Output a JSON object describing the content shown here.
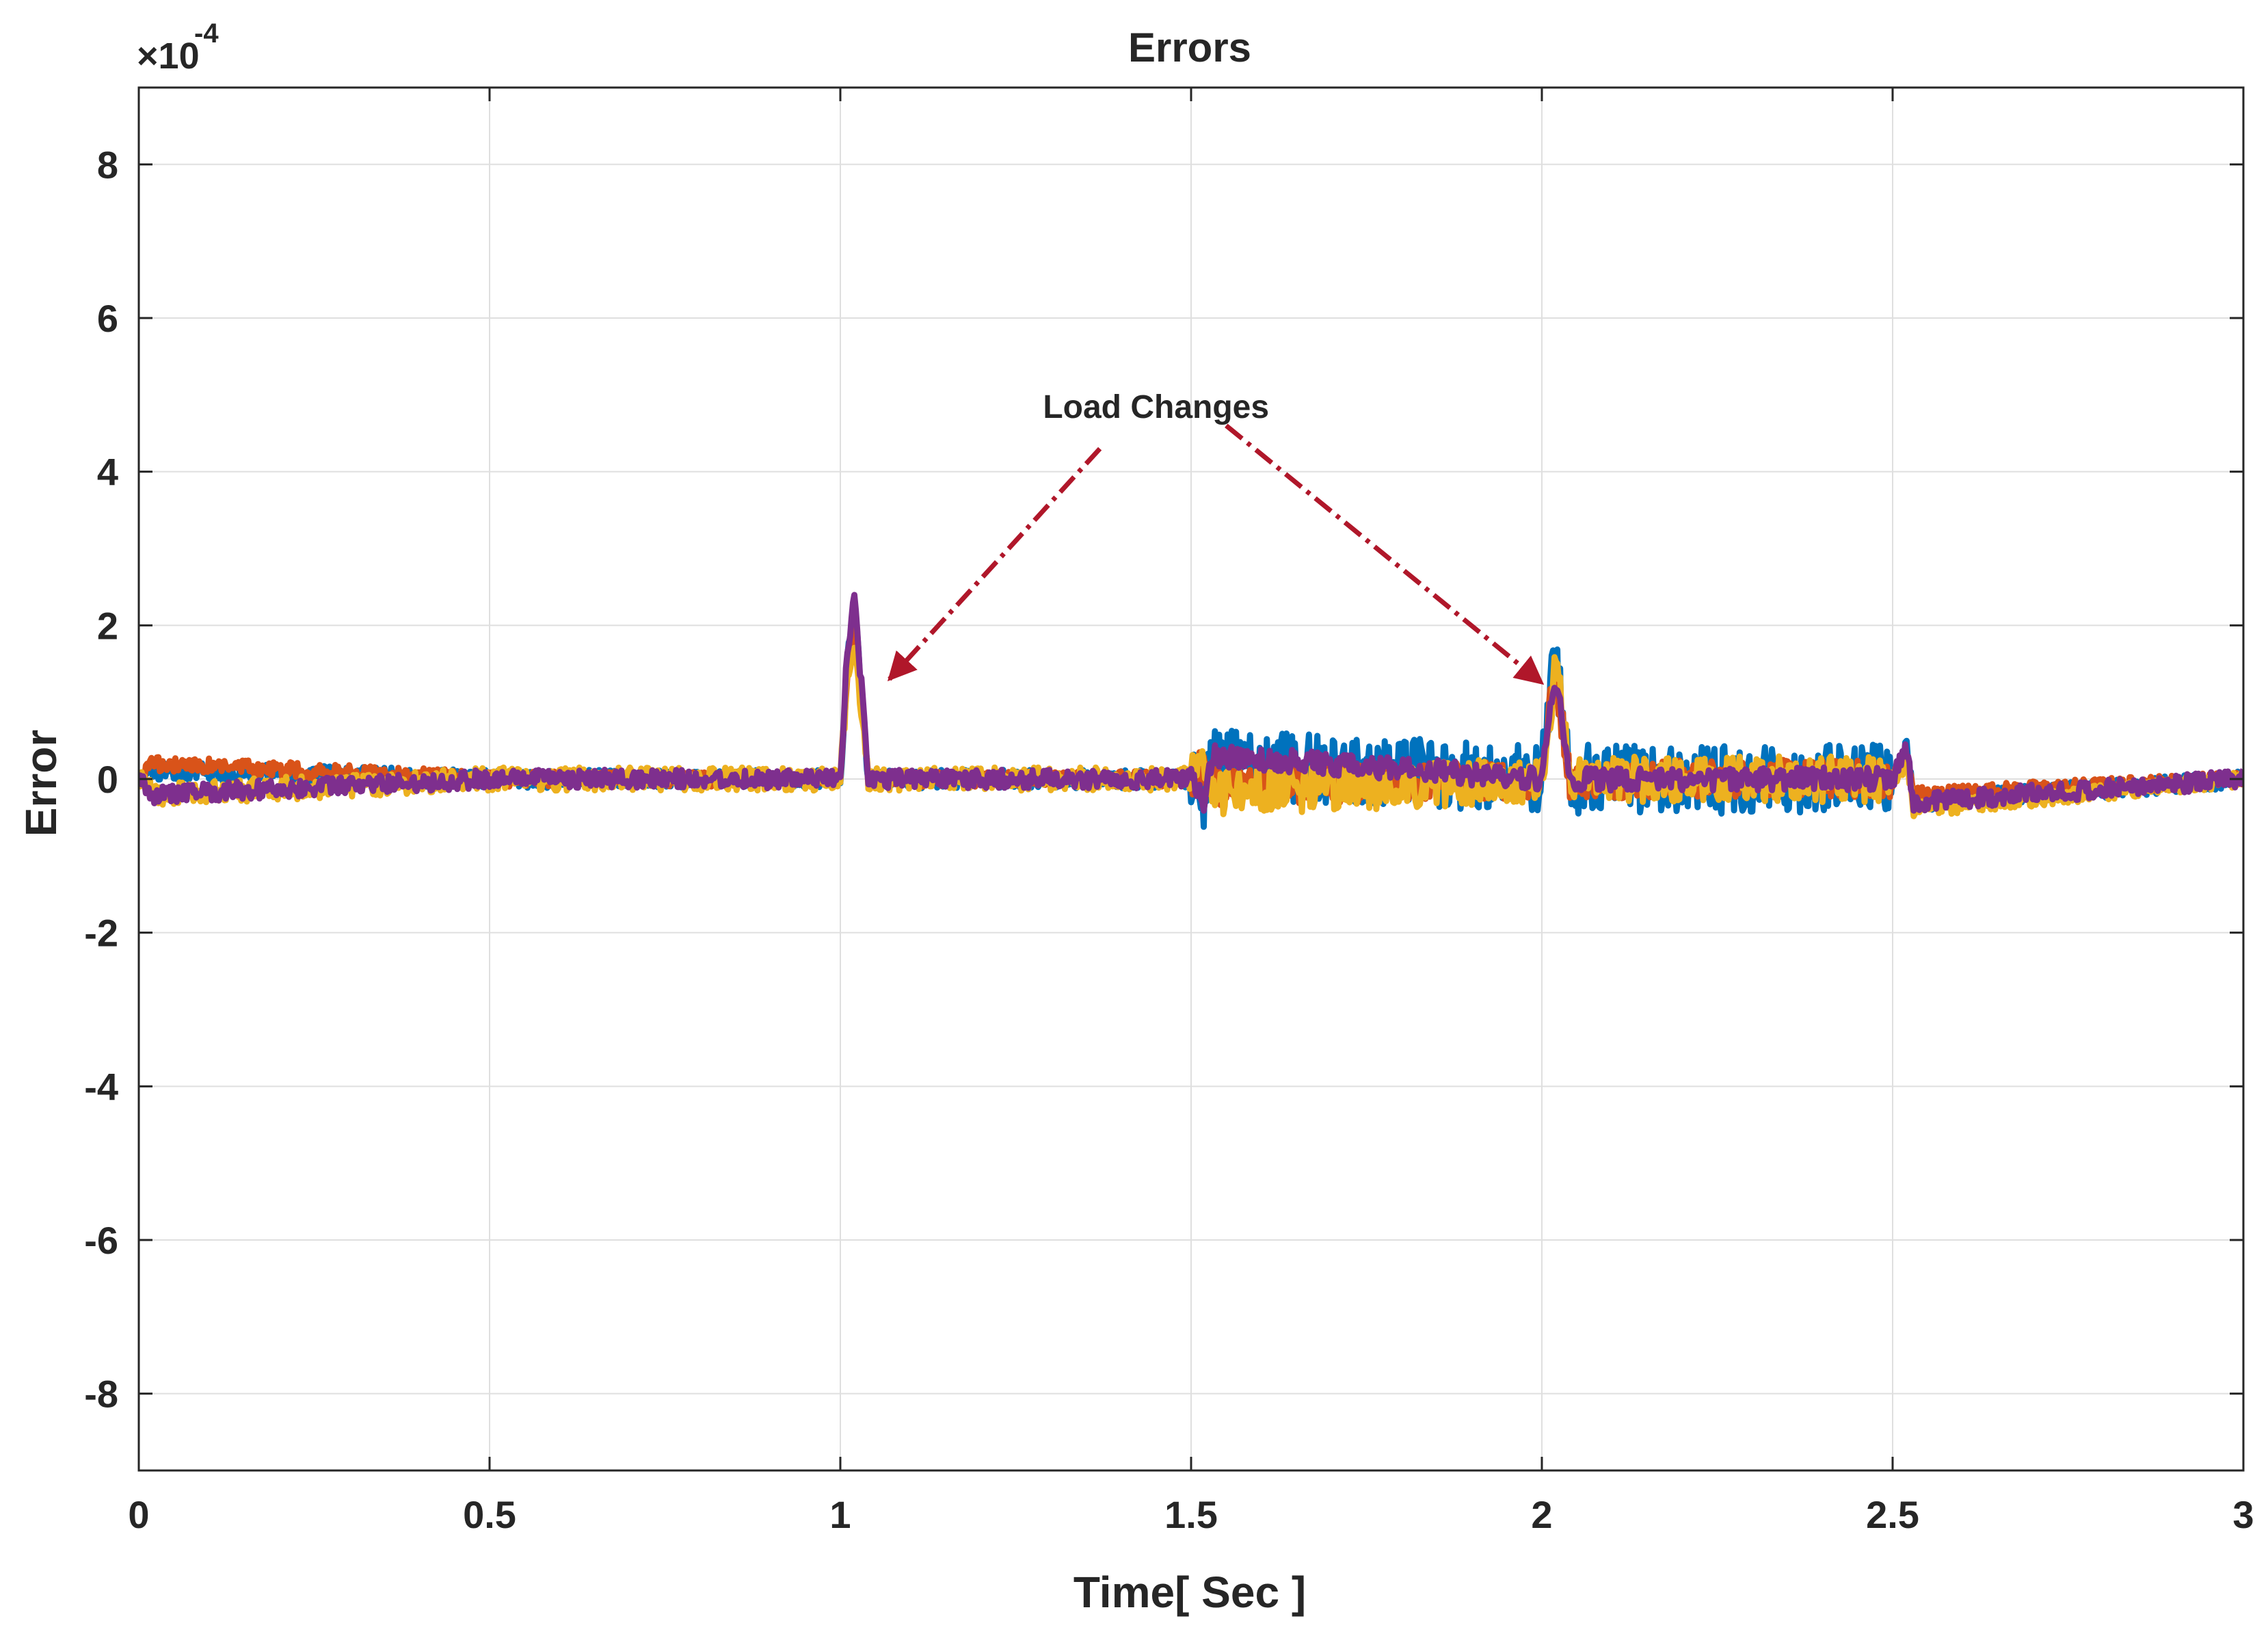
{
  "chart_data": {
    "type": "line",
    "title": "Errors",
    "xlabel": "Time[ Sec ]",
    "ylabel": "Error",
    "y_exponent_label": "×10",
    "y_exponent_power": "-4",
    "xlim": [
      0,
      3
    ],
    "ylim": [
      -9,
      9
    ],
    "y_scale_factor": 0.0001,
    "xticks": [
      0,
      0.5,
      1,
      1.5,
      2,
      2.5,
      3
    ],
    "xtick_labels": [
      "0",
      "0.5",
      "1",
      "1.5",
      "2",
      "2.5",
      "3"
    ],
    "yticks": [
      -8,
      -6,
      -4,
      -2,
      0,
      2,
      4,
      6,
      8
    ],
    "ytick_labels": [
      "-8",
      "-6",
      "-4",
      "-2",
      "0",
      "2",
      "4",
      "6",
      "8"
    ],
    "grid": true,
    "legend": "none",
    "annotation": {
      "text": "Load Changes",
      "x": 1.45,
      "y": 4.7,
      "arrow_color": "#b0172a",
      "targets": [
        {
          "from": [
            1.37,
            4.3
          ],
          "to": [
            1.07,
            1.3
          ]
        },
        {
          "from": [
            1.55,
            4.6
          ],
          "to": [
            2.0,
            1.25
          ]
        }
      ]
    },
    "series": [
      {
        "color": "#0072bd",
        "description_points": [
          [
            0.0,
            0.0
          ],
          [
            0.02,
            0.1
          ],
          [
            0.5,
            0.0
          ],
          [
            1.0,
            0.0
          ],
          [
            1.01,
            1.5
          ],
          [
            1.02,
            2.3
          ],
          [
            1.04,
            0.0
          ],
          [
            1.5,
            0.0
          ],
          [
            1.52,
            -0.2
          ],
          [
            1.53,
            0.2
          ],
          [
            2.0,
            0.0
          ],
          [
            2.01,
            1.0
          ],
          [
            2.02,
            1.6
          ],
          [
            2.04,
            0.0
          ],
          [
            2.5,
            0.0
          ],
          [
            2.52,
            0.4
          ],
          [
            2.53,
            -0.3
          ],
          [
            3.0,
            0.0
          ]
        ],
        "noise_by_segment": [
          [
            0.0,
            1.5,
            0.12
          ],
          [
            1.5,
            2.5,
            0.45
          ],
          [
            2.5,
            3.0,
            0.12
          ]
        ]
      },
      {
        "color": "#d95319",
        "description_points": [
          [
            0.0,
            0.0
          ],
          [
            0.02,
            0.2
          ],
          [
            0.5,
            0.0
          ],
          [
            1.0,
            0.0
          ],
          [
            1.01,
            1.4
          ],
          [
            1.02,
            2.0
          ],
          [
            1.04,
            0.0
          ],
          [
            1.5,
            0.0
          ],
          [
            1.52,
            0.2
          ],
          [
            1.53,
            -0.1
          ],
          [
            2.0,
            0.0
          ],
          [
            2.01,
            0.9
          ],
          [
            2.02,
            1.3
          ],
          [
            2.04,
            0.0
          ],
          [
            2.5,
            0.0
          ],
          [
            2.52,
            0.3
          ],
          [
            2.53,
            -0.2
          ],
          [
            3.0,
            0.0
          ]
        ],
        "noise_by_segment": [
          [
            0.0,
            1.5,
            0.1
          ],
          [
            1.5,
            2.5,
            0.25
          ],
          [
            2.5,
            3.0,
            0.1
          ]
        ]
      },
      {
        "color": "#edb120",
        "description_points": [
          [
            0.0,
            0.0
          ],
          [
            0.02,
            -0.2
          ],
          [
            0.5,
            0.0
          ],
          [
            1.0,
            0.0
          ],
          [
            1.01,
            1.3
          ],
          [
            1.02,
            1.8
          ],
          [
            1.04,
            0.0
          ],
          [
            1.5,
            0.0
          ],
          [
            1.52,
            0.3
          ],
          [
            1.53,
            -0.2
          ],
          [
            2.0,
            0.0
          ],
          [
            2.01,
            0.8
          ],
          [
            2.02,
            1.5
          ],
          [
            2.04,
            0.0
          ],
          [
            2.5,
            0.0
          ],
          [
            2.52,
            0.2
          ],
          [
            2.53,
            -0.4
          ],
          [
            3.0,
            0.0
          ]
        ],
        "noise_by_segment": [
          [
            0.0,
            1.5,
            0.15
          ],
          [
            1.5,
            2.5,
            0.3
          ],
          [
            2.5,
            3.0,
            0.1
          ]
        ]
      },
      {
        "color": "#7e2f8e",
        "description_points": [
          [
            0.0,
            0.0
          ],
          [
            0.02,
            -0.2
          ],
          [
            0.5,
            0.0
          ],
          [
            1.0,
            0.0
          ],
          [
            1.01,
            1.7
          ],
          [
            1.02,
            2.4
          ],
          [
            1.04,
            0.0
          ],
          [
            1.5,
            0.0
          ],
          [
            1.52,
            -0.3
          ],
          [
            1.53,
            0.3
          ],
          [
            2.0,
            0.0
          ],
          [
            2.01,
            0.9
          ],
          [
            2.02,
            1.3
          ],
          [
            2.04,
            0.0
          ],
          [
            2.5,
            0.0
          ],
          [
            2.52,
            0.4
          ],
          [
            2.53,
            -0.3
          ],
          [
            3.0,
            0.0
          ]
        ],
        "noise_by_segment": [
          [
            0.0,
            1.5,
            0.12
          ],
          [
            1.5,
            2.5,
            0.15
          ],
          [
            2.5,
            3.0,
            0.12
          ]
        ]
      }
    ]
  }
}
